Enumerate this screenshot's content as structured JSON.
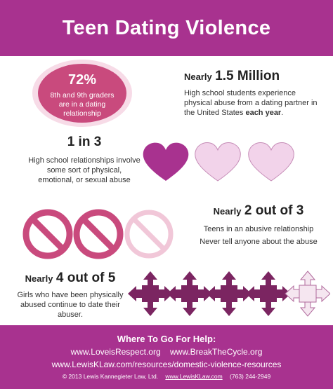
{
  "header": {
    "title": "Teen Dating Violence"
  },
  "stat1": {
    "value": "72%",
    "description": "8th and 9th graders are in a dating relationship"
  },
  "stat2": {
    "prefix": "Nearly",
    "value": "1.5 Million",
    "description_a": "High school students experience physical abuse from a dating partner in the United States",
    "description_b": "each year",
    "description_c": "."
  },
  "stat3": {
    "value": "1 in 3",
    "description": "High school relationships involve some sort of physical, emotional, or sexual abuse"
  },
  "stat4": {
    "prefix": "Nearly",
    "value": "2 out of 3",
    "line1": "Teens in an abusive relationship",
    "line2": "Never tell anyone about the abuse"
  },
  "stat5": {
    "prefix": "Nearly",
    "value": "4 out of 5",
    "description": "Girls who have been physically abused continue to date their abuser."
  },
  "footer": {
    "title": "Where To Go For Help:",
    "links_line1_a": "www.LoveisRespect.org",
    "links_line1_b": "www.BreakTheCycle.org",
    "links_line2": "www.LewisKLaw.com/resources/domestic-violence-resources",
    "copyright": "© 2013  Lewis Kannegieter Law, Ltd.",
    "copyright_site": "www.LewisKLaw.com",
    "copyright_phone": "(763) 244-2949"
  },
  "colors": {
    "brand": "#a8328f",
    "accent": "#c94a7d",
    "light": "#f7dbe7",
    "dark": "#7b2561"
  },
  "icons": [
    "heart-icon",
    "no-symbol-icon",
    "four-way-arrow-icon"
  ]
}
